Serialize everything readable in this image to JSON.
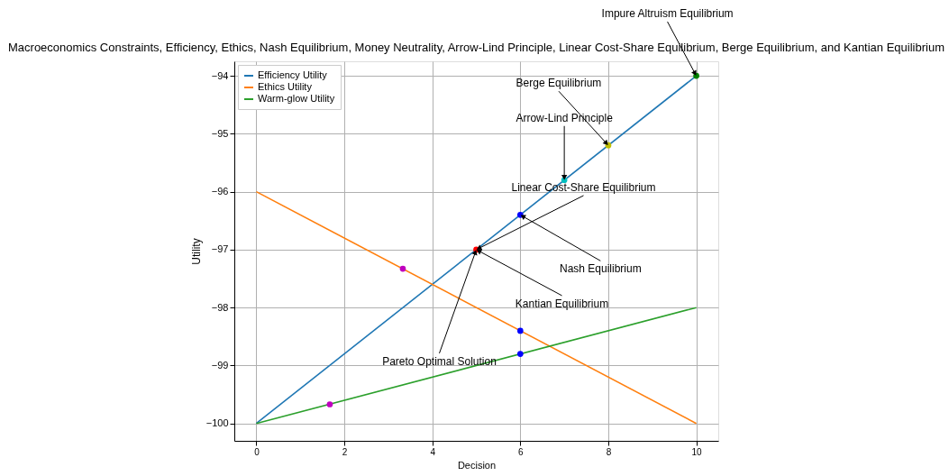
{
  "chart_data": {
    "type": "line",
    "title": "Macroeconomics Constraints, Efficiency, Ethics, Nash Equilibrium, Money Neutrality, Arrow-Lind Principle, Linear Cost-Share Equilibrium, Berge Equilibrium, and Kantian Equilibrium",
    "xlabel": "Decision",
    "ylabel": "Utility",
    "series": [
      {
        "name": "Efficiency Utility",
        "color": "#1f77b4",
        "x": [
          0,
          10
        ],
        "values": [
          -100,
          -94
        ]
      },
      {
        "name": "Ethics Utility",
        "color": "#ff7f0e",
        "x": [
          0,
          10
        ],
        "values": [
          -96,
          -100
        ]
      },
      {
        "name": "Warm-glow Utility",
        "color": "#2ca02c",
        "x": [
          0,
          10
        ],
        "values": [
          -100,
          -98
        ]
      },
      {
        "type": "scatter",
        "x": [
          3.33,
          1.67,
          6,
          6,
          6,
          5,
          7,
          8,
          10
        ],
        "values": [
          -97.33,
          -99.67,
          -96.4,
          -98.4,
          -98.8,
          -97,
          -95.8,
          -95.2,
          -94
        ],
        "colors": [
          "#bf00bf",
          "#bf00bf",
          "#0000ff",
          "#0000ff",
          "#0000ff",
          "#ff0000",
          "#00bfbf",
          "#bfbf00",
          "#008000"
        ]
      }
    ],
    "xlim": [
      -0.5,
      10.5
    ],
    "xticks": [
      0,
      2,
      4,
      6,
      8,
      10
    ],
    "ylim": [
      -100.3,
      -93.75
    ],
    "yticks": [
      {
        "value": -100,
        "label": "−100"
      },
      {
        "value": -99,
        "label": "−99"
      },
      {
        "value": -98,
        "label": "−98"
      },
      {
        "value": -97,
        "label": "−97"
      },
      {
        "value": -96,
        "label": "−96"
      },
      {
        "value": -95,
        "label": "−95"
      },
      {
        "value": -94,
        "label": "−94"
      }
    ],
    "grid": true,
    "legend": "top left",
    "marker": "none",
    "line_style": "solid",
    "annotations": [
      {
        "text": "Impure Altruism Equilibrium",
        "x": 10,
        "y": -94
      },
      {
        "text": "Berge Equilibrium",
        "x": 8,
        "y": -95.2
      },
      {
        "text": "Arrow-Lind Principle",
        "x": 7,
        "y": -95.8
      },
      {
        "text": "Linear Cost-Share Equilibrium",
        "x": 5,
        "y": -97
      },
      {
        "text": "Nash Equilibrium",
        "x": 6,
        "y": -96.4
      },
      {
        "text": "Kantian Equilibrium",
        "x": 5,
        "y": -97
      },
      {
        "text": "Pareto Optimal Solution",
        "x": 5,
        "y": -97
      }
    ]
  }
}
